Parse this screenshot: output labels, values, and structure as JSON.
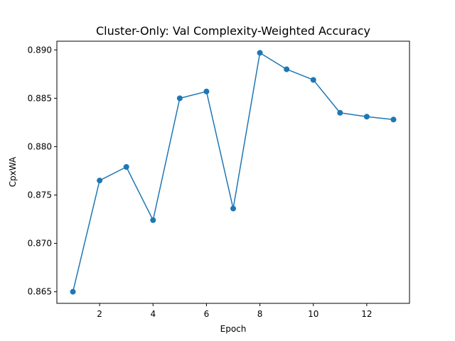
{
  "chart_data": {
    "type": "line",
    "title": "Cluster-Only: Val Complexity-Weighted Accuracy",
    "xlabel": "Epoch",
    "ylabel": "CpxWA",
    "xlim": [
      0.4,
      13.6
    ],
    "ylim": [
      0.8638,
      0.8909
    ],
    "x_ticks": [
      2,
      4,
      6,
      8,
      10,
      12
    ],
    "x_tick_labels": [
      "2",
      "4",
      "6",
      "8",
      "10",
      "12"
    ],
    "y_ticks": [
      0.865,
      0.87,
      0.875,
      0.88,
      0.885,
      0.89
    ],
    "y_tick_labels": [
      "0.865",
      "0.870",
      "0.875",
      "0.880",
      "0.885",
      "0.890"
    ],
    "grid": false,
    "series": [
      {
        "color": "#1f77b4",
        "marker": "circle",
        "x": [
          1,
          2,
          3,
          4,
          5,
          6,
          7,
          8,
          9,
          10,
          11,
          12,
          13
        ],
        "y": [
          0.865,
          0.8765,
          0.8779,
          0.8724,
          0.885,
          0.8857,
          0.8736,
          0.8897,
          0.888,
          0.8869,
          0.8835,
          0.8831,
          0.8828
        ]
      }
    ]
  }
}
